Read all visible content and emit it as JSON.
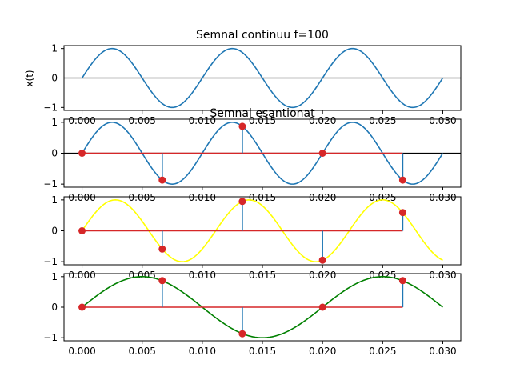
{
  "chart_data": [
    {
      "type": "line",
      "title": "Semnal continuu f=100",
      "ylabel": "x(t)",
      "xlabel": "",
      "xlim": [
        0,
        0.03
      ],
      "ylim": [
        -1,
        1
      ],
      "x_ticks": [
        "0.000",
        "0.005",
        "0.010",
        "0.015",
        "0.020",
        "0.025",
        "0.030"
      ],
      "y_ticks": [
        "1",
        "0",
        "−1"
      ],
      "grid": false,
      "series": [
        {
          "kind": "sine",
          "frequency": 100,
          "color": "#1f77b4",
          "x_range": [
            0,
            0.03
          ]
        }
      ],
      "zero_line_color": "#000000"
    },
    {
      "type": "line",
      "title": "Semnal esantionat",
      "ylabel": "",
      "xlabel": "",
      "xlim": [
        0,
        0.03
      ],
      "ylim": [
        -1,
        1
      ],
      "x_ticks": [
        "0.000",
        "0.005",
        "0.010",
        "0.015",
        "0.020",
        "0.025",
        "0.030"
      ],
      "y_ticks": [
        "1",
        "0",
        "−1"
      ],
      "grid": false,
      "series": [
        {
          "kind": "sine",
          "frequency": 100,
          "color": "#1f77b4",
          "x_range": [
            0,
            0.03
          ]
        }
      ],
      "stems": {
        "x": [
          0,
          0.00667,
          0.01333,
          0.02,
          0.02667
        ],
        "y": [
          0,
          -0.87,
          0.87,
          0,
          -0.87
        ],
        "stem_color": "#1f77b4",
        "marker_color": "#d62728",
        "baseline_color": "#d62728"
      },
      "zero_line_color": "#000000"
    },
    {
      "type": "line",
      "title": "",
      "ylabel": "",
      "xlabel": "",
      "xlim": [
        0,
        0.03
      ],
      "ylim": [
        -1,
        1
      ],
      "x_ticks": [
        "0.000",
        "0.005",
        "0.010",
        "0.015",
        "0.020",
        "0.025",
        "0.030"
      ],
      "y_ticks": [
        "1",
        "0",
        "−1"
      ],
      "grid": false,
      "series": [
        {
          "kind": "sine",
          "frequency": 90,
          "color": "#ffff00",
          "x_range": [
            0,
            0.03
          ]
        }
      ],
      "stems": {
        "x": [
          0,
          0.00667,
          0.01333,
          0.02,
          0.02667
        ],
        "y": [
          0,
          -0.59,
          0.95,
          -0.95,
          0.59
        ],
        "stem_color": "#1f77b4",
        "marker_color": "#d62728",
        "baseline_color": "#d62728"
      }
    },
    {
      "type": "line",
      "title": "",
      "ylabel": "",
      "xlabel": "",
      "xlim": [
        0,
        0.03
      ],
      "ylim": [
        -1,
        1
      ],
      "x_ticks": [
        "0.000",
        "0.005",
        "0.010",
        "0.015",
        "0.020",
        "0.025",
        "0.030"
      ],
      "y_ticks": [
        "1",
        "0",
        "−1"
      ],
      "grid": false,
      "series": [
        {
          "kind": "sine",
          "frequency": 50,
          "color": "#008000",
          "x_range": [
            0,
            0.03
          ]
        }
      ],
      "stems": {
        "x": [
          0,
          0.00667,
          0.01333,
          0.02,
          0.02667
        ],
        "y": [
          0,
          0.87,
          -0.87,
          0,
          0.87
        ],
        "stem_color": "#1f77b4",
        "marker_color": "#d62728",
        "baseline_color": "#d62728"
      }
    }
  ]
}
